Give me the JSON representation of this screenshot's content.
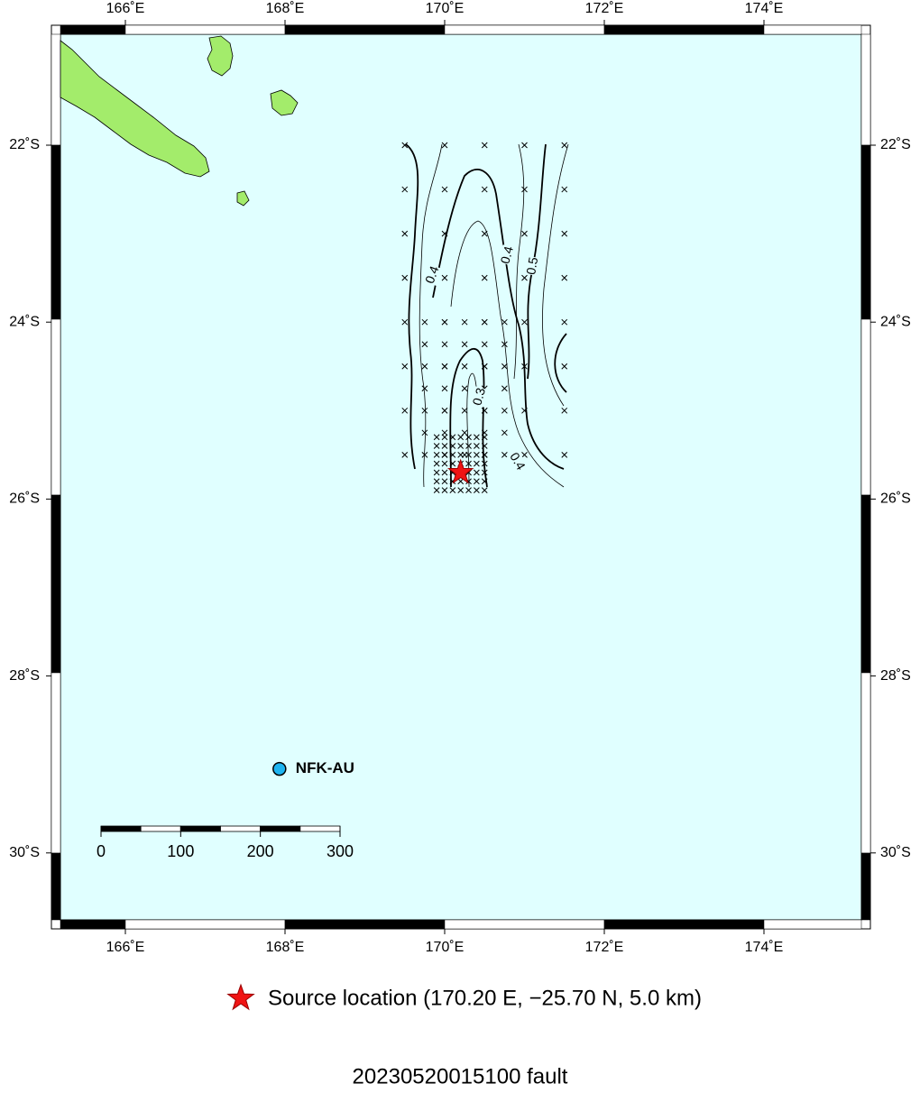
{
  "map": {
    "lon_ticks": [
      {
        "value": 166,
        "label": "166˚E"
      },
      {
        "value": 168,
        "label": "168˚E"
      },
      {
        "value": 170,
        "label": "170˚E"
      },
      {
        "value": 172,
        "label": "172˚E"
      },
      {
        "value": 174,
        "label": "174˚E"
      }
    ],
    "lat_ticks": [
      {
        "value": -22,
        "label": "22˚S"
      },
      {
        "value": -24,
        "label": "24˚S"
      },
      {
        "value": -26,
        "label": "26˚S"
      },
      {
        "value": -28,
        "label": "28˚S"
      },
      {
        "value": -30,
        "label": "30˚S"
      }
    ],
    "contour_labels": [
      0.4,
      0.4,
      0.5,
      0.3,
      0.4
    ],
    "station": {
      "name": "NFK-AU",
      "lon": 167.93,
      "lat": -29.05
    },
    "source": {
      "lon": 170.2,
      "lat": -25.7
    },
    "scale_bar": {
      "ticks": [
        0,
        100,
        200,
        300
      ]
    },
    "legend": "Source location (170.20 E, −25.70 N, 5.0 km)",
    "title": "20230520015100 fault"
  }
}
